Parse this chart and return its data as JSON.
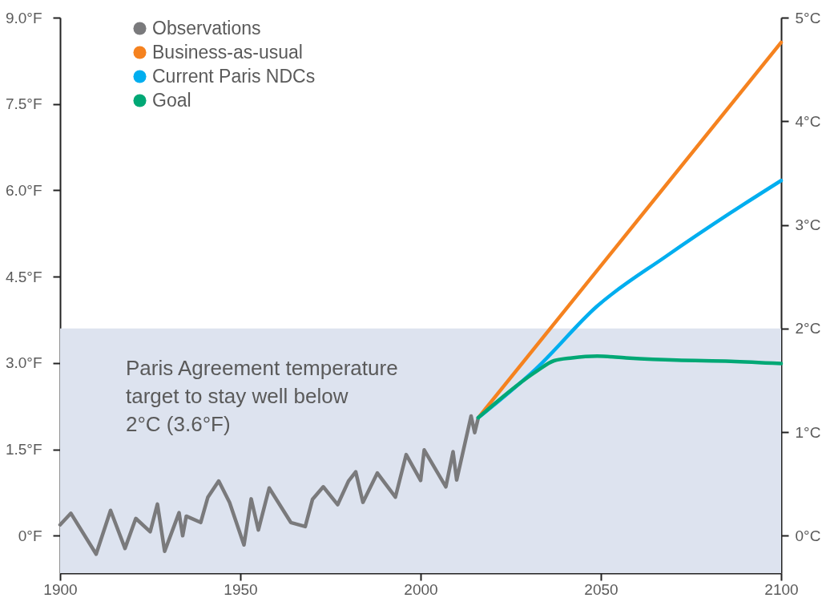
{
  "chart_data": {
    "type": "line",
    "x": [
      1900,
      1903,
      1910,
      1914,
      1918,
      1921,
      1925,
      1927,
      1929,
      1933,
      1934,
      1935,
      1939,
      1941,
      1944,
      1947,
      1951,
      1953,
      1955,
      1958,
      1964,
      1968,
      1970,
      1973,
      1977,
      1980,
      1982,
      1984,
      1988,
      1993,
      1996,
      2000,
      2001,
      2007,
      2009,
      2010,
      2014,
      2015,
      2016
    ],
    "series": [
      {
        "name": "Observations",
        "color": "#7a7a7c",
        "values": [
          0.19,
          0.39,
          -0.32,
          0.44,
          -0.22,
          0.3,
          0.07,
          0.55,
          -0.27,
          0.4,
          0.0,
          0.34,
          0.23,
          0.67,
          0.95,
          0.58,
          -0.16,
          0.64,
          0.1,
          0.83,
          0.23,
          0.16,
          0.63,
          0.85,
          0.54,
          0.95,
          1.11,
          0.58,
          1.09,
          0.67,
          1.41,
          0.96,
          1.49,
          0.85,
          1.46,
          0.97,
          2.08,
          1.79,
          2.05
        ]
      },
      {
        "name": "Business-as-usual",
        "color": "#f5821f",
        "x": [
          2016,
          2100
        ],
        "values": [
          2.05,
          8.57
        ]
      },
      {
        "name": "Current Paris NDCs",
        "color": "#00aeef",
        "x": [
          2016,
          2032,
          2049,
          2068,
          2086,
          2100
        ],
        "values": [
          2.05,
          2.9,
          3.99,
          4.85,
          5.61,
          6.17
        ]
      },
      {
        "name": "Goal",
        "color": "#00a875",
        "x": [
          2016,
          2032,
          2037,
          2042,
          2049,
          2057,
          2071,
          2086,
          2100
        ],
        "values": [
          2.05,
          2.85,
          3.04,
          3.09,
          3.12,
          3.09,
          3.05,
          3.03,
          2.99
        ]
      }
    ],
    "xlim": [
      1900,
      2100
    ],
    "xticks": [
      1900,
      1950,
      2000,
      2050,
      2100
    ],
    "ylim": [
      -0.65,
      9.0
    ],
    "yticks": [
      {
        "value": 0,
        "label": "0°F"
      },
      {
        "value": 1.5,
        "label": "1.5°F"
      },
      {
        "value": 3.0,
        "label": "3.0°F"
      },
      {
        "value": 4.5,
        "label": "4.5°F"
      },
      {
        "value": 6.0,
        "label": "6.0°F"
      },
      {
        "value": 7.5,
        "label": "7.5°F"
      },
      {
        "value": 9.0,
        "label": "9.0°F"
      }
    ],
    "y2lim": [
      -0.36,
      5.0
    ],
    "y2ticks": [
      {
        "value": 0,
        "label": "0°C"
      },
      {
        "value": 1,
        "label": "1°C"
      },
      {
        "value": 2,
        "label": "2°C"
      },
      {
        "value": 3,
        "label": "3°C"
      },
      {
        "value": 4,
        "label": "4°C"
      },
      {
        "value": 5,
        "label": "5°C"
      }
    ],
    "bands": [
      {
        "axis": "y",
        "from": -0.65,
        "to": 3.6,
        "label": "Paris Agreement temperature target to stay well below 2°C (3.6°F)",
        "color": "#dde3ef"
      }
    ],
    "legend": "top left",
    "grid": false,
    "marker": "none",
    "line_style": "solid"
  }
}
